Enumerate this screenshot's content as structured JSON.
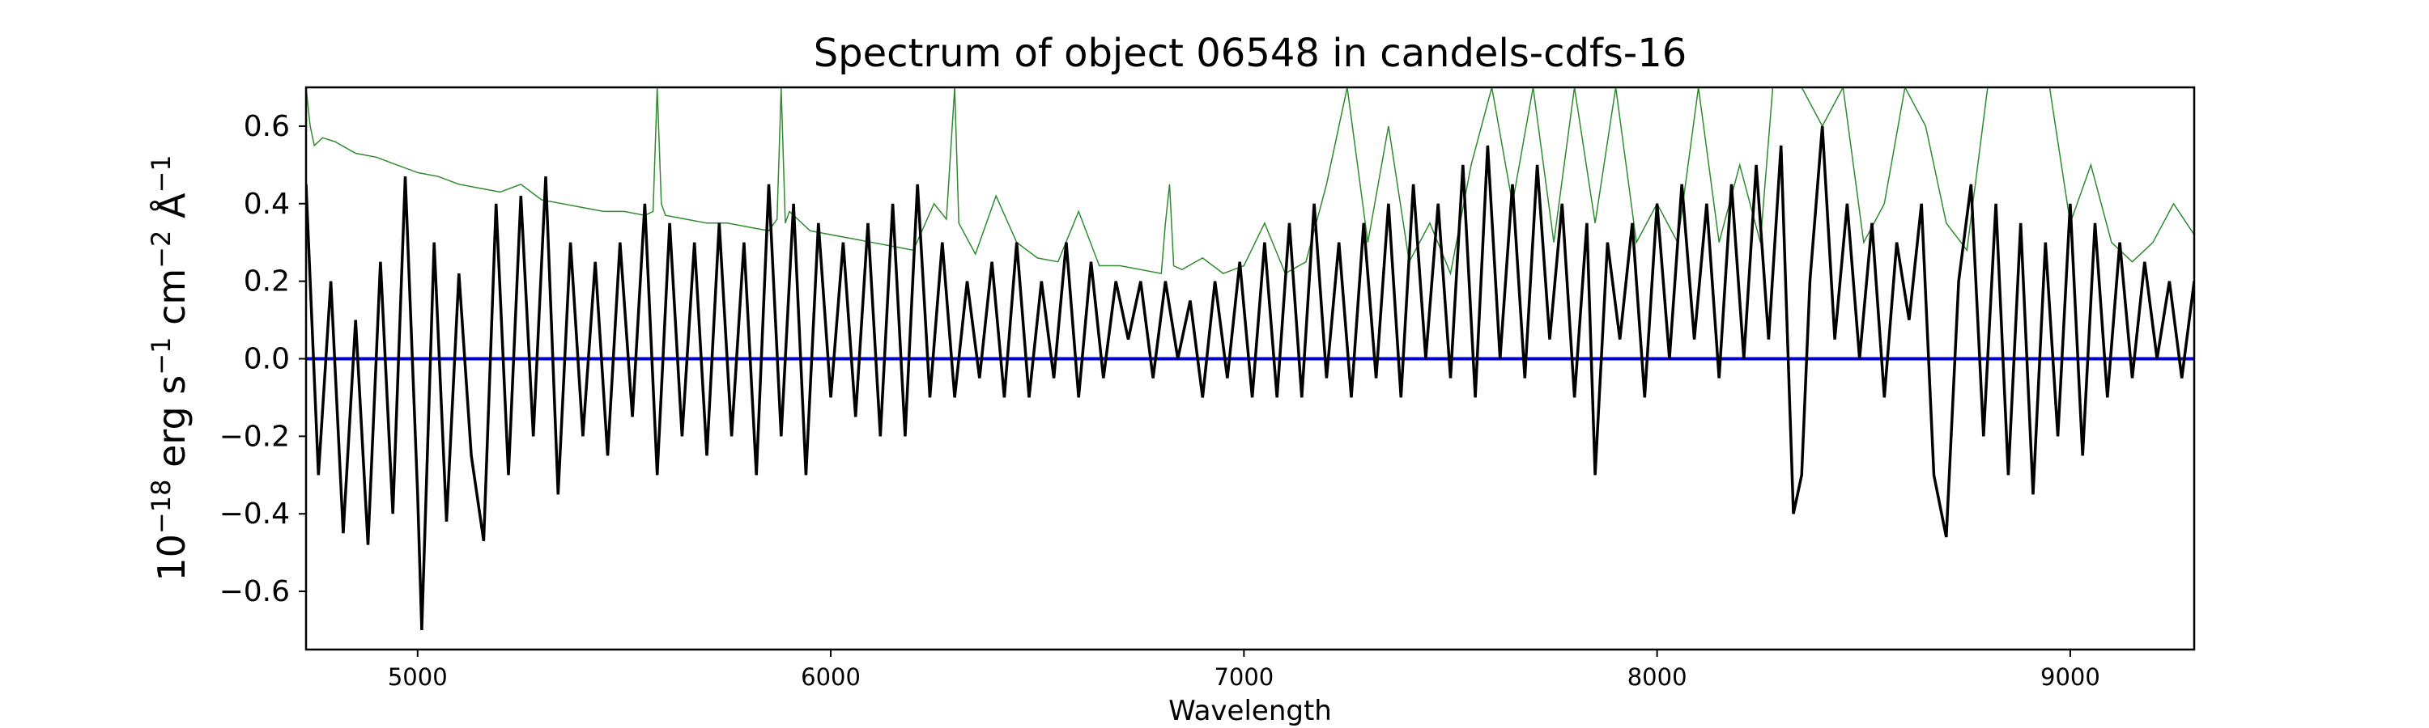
{
  "chart_data": {
    "type": "line",
    "title": "Spectrum of object 06548 in candels-cdfs-16",
    "xlabel": "Wavelength",
    "ylabel": {
      "base": "10",
      "base_exp": "−18",
      "erg": " erg s",
      "s_exp": "−1",
      "cm": " cm",
      "cm_exp": "−2",
      "ang": " Å",
      "ang_exp": "−1"
    },
    "xlim": [
      4730,
      9300
    ],
    "ylim": [
      -0.75,
      0.7
    ],
    "x_ticks": [
      5000,
      6000,
      7000,
      8000,
      9000
    ],
    "x_tick_labels": [
      "5000",
      "6000",
      "7000",
      "8000",
      "9000"
    ],
    "y_ticks": [
      -0.6,
      -0.4,
      -0.2,
      0.0,
      0.2,
      0.4,
      0.6
    ],
    "y_tick_labels": [
      "−0.6",
      "−0.4",
      "−0.2",
      "0.0",
      "0.2",
      "0.4",
      "0.6"
    ],
    "grid": false,
    "colors": {
      "flux": "#000000",
      "error": "#2e8b2e",
      "zero": "#0000cc"
    },
    "series": [
      {
        "key": "flux",
        "x": [
          4730,
          4760,
          4790,
          4820,
          4850,
          4880,
          4910,
          4940,
          4970,
          5000,
          5010,
          5040,
          5070,
          5100,
          5130,
          5160,
          5190,
          5220,
          5250,
          5280,
          5310,
          5340,
          5370,
          5400,
          5430,
          5460,
          5490,
          5520,
          5550,
          5580,
          5610,
          5640,
          5670,
          5700,
          5730,
          5760,
          5790,
          5820,
          5850,
          5880,
          5910,
          5940,
          5970,
          6000,
          6030,
          6060,
          6090,
          6120,
          6150,
          6180,
          6210,
          6240,
          6270,
          6300,
          6330,
          6360,
          6390,
          6420,
          6450,
          6480,
          6510,
          6540,
          6570,
          6600,
          6630,
          6660,
          6690,
          6720,
          6750,
          6780,
          6810,
          6840,
          6870,
          6900,
          6930,
          6960,
          6990,
          7020,
          7050,
          7080,
          7110,
          7140,
          7170,
          7200,
          7230,
          7260,
          7290,
          7320,
          7350,
          7380,
          7410,
          7440,
          7470,
          7500,
          7530,
          7560,
          7590,
          7620,
          7650,
          7680,
          7710,
          7740,
          7770,
          7800,
          7830,
          7850,
          7880,
          7910,
          7940,
          7970,
          8000,
          8030,
          8060,
          8090,
          8120,
          8150,
          8180,
          8210,
          8240,
          8270,
          8300,
          8330,
          8350,
          8370,
          8400,
          8430,
          8460,
          8490,
          8520,
          8550,
          8580,
          8610,
          8640,
          8670,
          8700,
          8730,
          8760,
          8790,
          8820,
          8850,
          8880,
          8910,
          8940,
          8970,
          9000,
          9030,
          9060,
          9090,
          9120,
          9150,
          9180,
          9210,
          9240,
          9270,
          9300
        ],
        "y": [
          0.45,
          -0.3,
          0.2,
          -0.45,
          0.1,
          -0.48,
          0.25,
          -0.4,
          0.47,
          -0.35,
          -0.7,
          0.3,
          -0.42,
          0.22,
          -0.25,
          -0.47,
          0.4,
          -0.3,
          0.42,
          -0.2,
          0.47,
          -0.35,
          0.3,
          -0.2,
          0.25,
          -0.25,
          0.3,
          -0.15,
          0.4,
          -0.3,
          0.35,
          -0.2,
          0.3,
          -0.25,
          0.35,
          -0.2,
          0.3,
          -0.3,
          0.45,
          -0.2,
          0.4,
          -0.3,
          0.35,
          -0.1,
          0.3,
          -0.15,
          0.35,
          -0.2,
          0.4,
          -0.2,
          0.45,
          -0.1,
          0.3,
          -0.1,
          0.2,
          -0.05,
          0.25,
          -0.1,
          0.3,
          -0.1,
          0.2,
          -0.05,
          0.3,
          -0.1,
          0.25,
          -0.05,
          0.2,
          0.05,
          0.2,
          -0.05,
          0.2,
          0.0,
          0.15,
          -0.1,
          0.2,
          -0.05,
          0.25,
          -0.1,
          0.3,
          -0.1,
          0.35,
          -0.1,
          0.4,
          -0.05,
          0.3,
          -0.1,
          0.35,
          -0.05,
          0.4,
          -0.1,
          0.45,
          0.0,
          0.4,
          -0.05,
          0.5,
          -0.1,
          0.55,
          0.0,
          0.45,
          -0.05,
          0.5,
          0.05,
          0.4,
          -0.1,
          0.35,
          -0.3,
          0.3,
          0.05,
          0.35,
          -0.1,
          0.4,
          0.0,
          0.45,
          0.05,
          0.4,
          -0.05,
          0.45,
          0.0,
          0.5,
          0.05,
          0.55,
          -0.4,
          -0.3,
          0.2,
          0.6,
          0.05,
          0.4,
          0.0,
          0.35,
          -0.1,
          0.3,
          0.1,
          0.4,
          -0.3,
          -0.46,
          0.2,
          0.45,
          -0.2,
          0.4,
          -0.3,
          0.35,
          -0.35,
          0.3,
          -0.2,
          0.4,
          -0.25,
          0.35,
          -0.1,
          0.3,
          -0.05,
          0.25,
          0.0,
          0.2,
          -0.05,
          0.2
        ]
      },
      {
        "key": "error",
        "x": [
          4730,
          4740,
          4750,
          4770,
          4800,
          4850,
          4900,
          4950,
          5000,
          5050,
          5100,
          5150,
          5200,
          5250,
          5300,
          5350,
          5400,
          5450,
          5500,
          5550,
          5570,
          5580,
          5590,
          5600,
          5650,
          5700,
          5750,
          5800,
          5850,
          5870,
          5880,
          5890,
          5900,
          5950,
          6000,
          6050,
          6100,
          6150,
          6200,
          6250,
          6280,
          6300,
          6310,
          6350,
          6400,
          6450,
          6500,
          6550,
          6600,
          6650,
          6700,
          6750,
          6800,
          6810,
          6820,
          6830,
          6850,
          6900,
          6950,
          7000,
          7050,
          7100,
          7150,
          7200,
          7250,
          7300,
          7350,
          7400,
          7450,
          7500,
          7550,
          7600,
          7650,
          7700,
          7750,
          7800,
          7850,
          7900,
          7950,
          8000,
          8050,
          8100,
          8150,
          8200,
          8250,
          8280,
          8300,
          8350,
          8400,
          8450,
          8500,
          8550,
          8600,
          8650,
          8700,
          8750,
          8800,
          8850,
          8900,
          8950,
          9000,
          9050,
          9100,
          9150,
          9200,
          9250,
          9300
        ],
        "y": [
          0.7,
          0.6,
          0.55,
          0.57,
          0.56,
          0.53,
          0.52,
          0.5,
          0.48,
          0.47,
          0.45,
          0.44,
          0.43,
          0.45,
          0.41,
          0.4,
          0.39,
          0.38,
          0.38,
          0.37,
          0.38,
          0.7,
          0.4,
          0.37,
          0.36,
          0.35,
          0.35,
          0.34,
          0.33,
          0.36,
          0.7,
          0.35,
          0.38,
          0.33,
          0.32,
          0.31,
          0.3,
          0.29,
          0.28,
          0.4,
          0.36,
          0.7,
          0.35,
          0.27,
          0.42,
          0.3,
          0.26,
          0.25,
          0.38,
          0.24,
          0.24,
          0.23,
          0.22,
          0.35,
          0.45,
          0.24,
          0.23,
          0.26,
          0.22,
          0.24,
          0.35,
          0.22,
          0.25,
          0.45,
          0.7,
          0.3,
          0.6,
          0.25,
          0.35,
          0.22,
          0.5,
          0.7,
          0.4,
          0.7,
          0.3,
          0.7,
          0.35,
          0.7,
          0.3,
          0.4,
          0.3,
          0.7,
          0.3,
          0.5,
          0.3,
          0.7,
          0.7,
          0.7,
          0.6,
          0.7,
          0.3,
          0.4,
          0.7,
          0.6,
          0.35,
          0.28,
          0.7,
          0.7,
          0.7,
          0.7,
          0.35,
          0.5,
          0.3,
          0.25,
          0.3,
          0.4,
          0.32
        ]
      }
    ]
  }
}
